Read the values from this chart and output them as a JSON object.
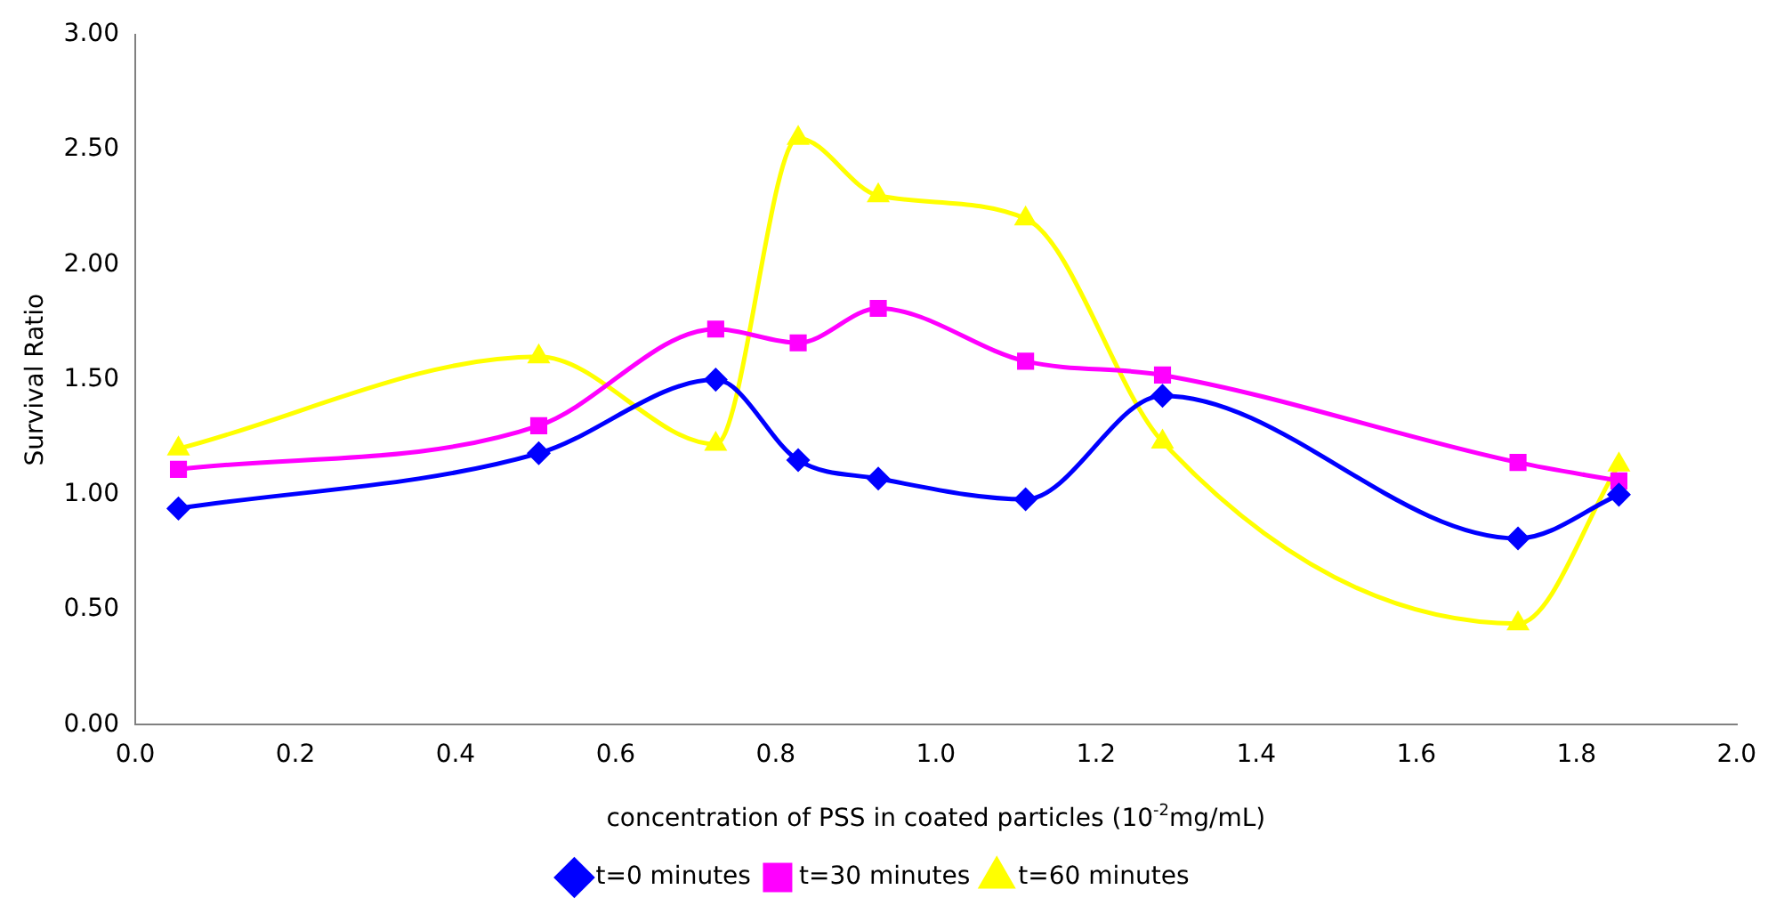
{
  "chart_data": {
    "type": "line",
    "xlabel": "concentration of PSS in coated particles (10$^{-2}$mg/mL)",
    "ylabel": "Survival Ratio",
    "x": [
      0.054,
      0.504,
      0.725,
      0.828,
      0.928,
      1.112,
      1.283,
      1.727,
      1.853
    ],
    "series": [
      {
        "name": "t=0 minutes",
        "color": "#0000ff",
        "marker": "diamond",
        "values": [
          0.94,
          1.18,
          1.5,
          1.15,
          1.07,
          0.98,
          1.43,
          0.81,
          1.0
        ]
      },
      {
        "name": "t=30 minutes",
        "color": "#ff00ff",
        "marker": "square",
        "values": [
          1.11,
          1.3,
          1.72,
          1.66,
          1.81,
          1.58,
          1.52,
          1.14,
          1.06
        ]
      },
      {
        "name": "t=60 minutes",
        "color": "#ffff00",
        "marker": "triangle",
        "values": [
          1.2,
          1.6,
          1.22,
          2.55,
          2.3,
          2.2,
          1.23,
          0.44,
          1.13
        ]
      }
    ],
    "xlim": [
      0,
      2
    ],
    "xticks": [
      {
        "value": 0,
        "label": "0.0"
      },
      {
        "value": 0.2,
        "label": "0.2"
      },
      {
        "value": 0.4,
        "label": "0.4"
      },
      {
        "value": 0.6,
        "label": "0.6"
      },
      {
        "value": 0.8,
        "label": "0.8"
      },
      {
        "value": 1,
        "label": "1.0"
      },
      {
        "value": 1.2,
        "label": "1.2"
      },
      {
        "value": 1.4,
        "label": "1.4"
      },
      {
        "value": 1.6,
        "label": "1.6"
      },
      {
        "value": 1.8,
        "label": "1.8"
      },
      {
        "value": 2,
        "label": "2.0"
      }
    ],
    "ylim": [
      0,
      3
    ],
    "yticks": [
      {
        "value": 0,
        "label": "0.00"
      },
      {
        "value": 0.5,
        "label": "0.50"
      },
      {
        "value": 1,
        "label": "1.00"
      },
      {
        "value": 1.5,
        "label": "1.50"
      },
      {
        "value": 2,
        "label": "2.00"
      },
      {
        "value": 2.5,
        "label": "2.50"
      },
      {
        "value": 3,
        "label": "3.00"
      }
    ],
    "grid": false,
    "legend": "bottom"
  }
}
